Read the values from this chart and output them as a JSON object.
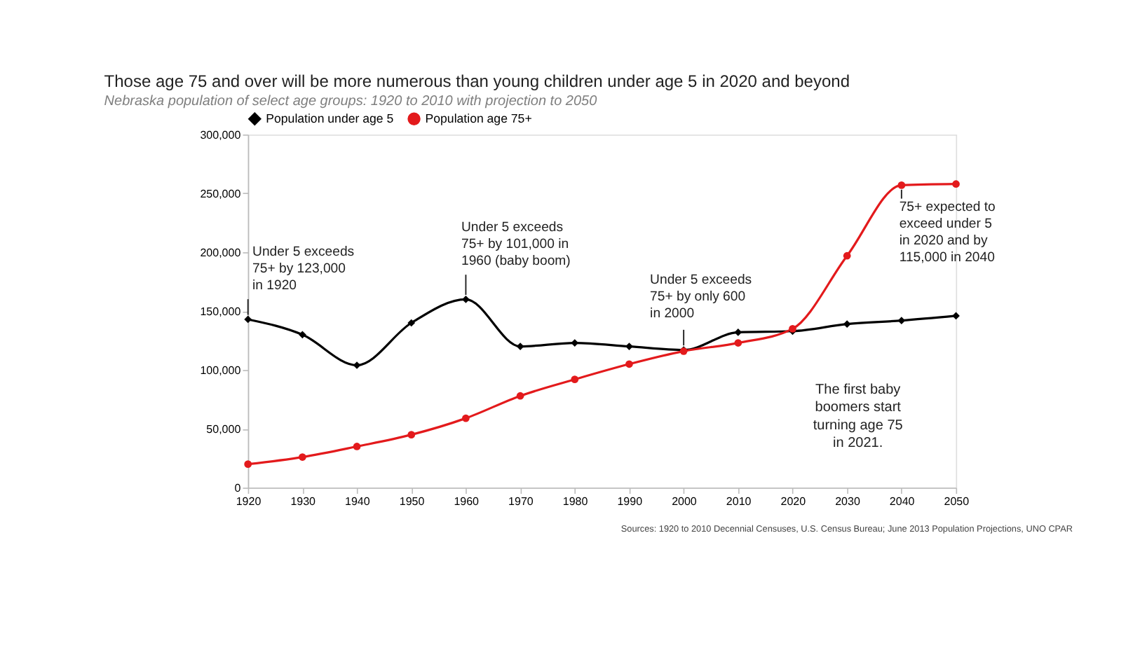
{
  "chart_data": {
    "type": "line",
    "title": "Those age 75 and over will be more numerous than young children under age 5 in 2020 and beyond",
    "subtitle": "Nebraska population of select age groups: 1920 to 2010 with projection to 2050",
    "x": [
      1920,
      1930,
      1940,
      1950,
      1960,
      1970,
      1980,
      1990,
      2000,
      2010,
      2020,
      2030,
      2040,
      2050
    ],
    "series": [
      {
        "name": "Population under age 5",
        "color": "#000000",
        "marker": "diamond",
        "values": [
          143000,
          130000,
          104000,
          140000,
          160000,
          120000,
          123000,
          120000,
          117000,
          132000,
          133000,
          139000,
          142000,
          146000
        ]
      },
      {
        "name": "Population age 75+",
        "color": "#e31a1c",
        "marker": "circle",
        "values": [
          20000,
          26000,
          35000,
          45000,
          59000,
          78000,
          92000,
          105000,
          116000,
          123000,
          135000,
          197000,
          257000,
          258000
        ]
      }
    ],
    "xlim": [
      1920,
      2050
    ],
    "xticks": [
      1920,
      1930,
      1940,
      1950,
      1960,
      1970,
      1980,
      1990,
      2000,
      2010,
      2020,
      2030,
      2040,
      2050
    ],
    "ylim": [
      0,
      300000
    ],
    "yticks": [
      {
        "value": 0,
        "label": "0"
      },
      {
        "value": 50000,
        "label": "50,000"
      },
      {
        "value": 100000,
        "label": "100,000"
      },
      {
        "value": 150000,
        "label": "150,000"
      },
      {
        "value": 200000,
        "label": "200,000"
      },
      {
        "value": 250000,
        "label": "250,000"
      },
      {
        "value": 300000,
        "label": "300,000"
      }
    ],
    "annotations": [
      {
        "text": "Under 5 exceeds\n75+ by 123,000\nin 1920",
        "x": 1920,
        "y": 143000
      },
      {
        "text": "Under 5 exceeds\n75+ by 101,000 in\n1960 (baby boom)",
        "x": 1960,
        "y": 160000
      },
      {
        "text": "Under 5 exceeds\n75+ by only 600\nin 2000",
        "x": 2000,
        "y": 117000
      },
      {
        "text": "75+ expected to\nexceed under 5\nin 2020 and by\n115,000 in 2040",
        "x": 2040,
        "y": 257000
      },
      "The first baby\nboomers start\nturning age 75\nin 2021.",
      "Sources: 1920 to 2010 Decennial Censuses, U.S. Census Bureau; June 2013 Population Projections, UNO CPAR"
    ],
    "legend": "top left",
    "grid": false,
    "line_style": "solid"
  }
}
